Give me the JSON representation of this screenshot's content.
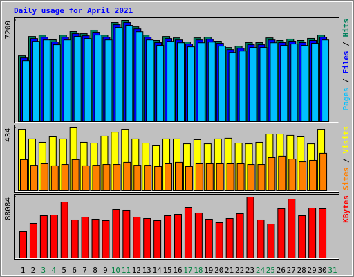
{
  "chart_data": {
    "type": "bar",
    "title": "Daily usage for April 2021",
    "title_color": "#0000ff",
    "categories": [
      "1",
      "2",
      "3",
      "4",
      "5",
      "6",
      "7",
      "8",
      "9",
      "10",
      "11",
      "12",
      "13",
      "14",
      "15",
      "16",
      "17",
      "18",
      "19",
      "20",
      "21",
      "22",
      "23",
      "24",
      "25",
      "26",
      "27",
      "28",
      "29",
      "30",
      "31"
    ],
    "category_colors": [
      "#000000",
      "#000000",
      "#008040",
      "#008040",
      "#000000",
      "#000000",
      "#000000",
      "#000000",
      "#000000",
      "#008040",
      "#008040",
      "#000000",
      "#000000",
      "#000000",
      "#000000",
      "#000000",
      "#008040",
      "#008040",
      "#000000",
      "#000000",
      "#000000",
      "#000000",
      "#000000",
      "#008040",
      "#008040",
      "#000000",
      "#000000",
      "#000000",
      "#000000",
      "#000000",
      "#008040"
    ],
    "legend_separator": " / ",
    "panels": [
      {
        "ylim": [
          0,
          7200
        ],
        "yticks": [
          7200
        ],
        "series": [
          {
            "name": "Pages",
            "color": "#00c0ff",
            "values": [
              4330,
              5710,
              5810,
              5470,
              5810,
              6060,
              5910,
              6160,
              5810,
              6700,
              6850,
              6400,
              5810,
              5420,
              5710,
              5610,
              5320,
              5610,
              5660,
              5370,
              4920,
              5020,
              5270,
              5270,
              5610,
              5420,
              5520,
              5420,
              5570,
              5810,
              null
            ]
          },
          {
            "name": "Files",
            "color": "#0000ff",
            "values": [
              4530,
              5910,
              6010,
              5670,
              6010,
              6260,
              6110,
              6360,
              6010,
              6900,
              7050,
              6600,
              6010,
              5620,
              5910,
              5810,
              5520,
              5810,
              5860,
              5570,
              5120,
              5220,
              5470,
              5470,
              5810,
              5620,
              5720,
              5620,
              5770,
              6010,
              null
            ]
          },
          {
            "name": "Hits",
            "color": "#00805c",
            "values": [
              4680,
              6060,
              6160,
              5820,
              6160,
              6410,
              6260,
              6510,
              6160,
              7050,
              7200,
              6750,
              6160,
              5770,
              6060,
              5960,
              5670,
              5960,
              6010,
              5720,
              5270,
              5370,
              5620,
              5620,
              5960,
              5770,
              5870,
              5770,
              5920,
              6160,
              null
            ]
          }
        ]
      },
      {
        "ylim": [
          0,
          434
        ],
        "yticks": [
          434
        ],
        "series": [
          {
            "name": "Sites",
            "color": "#ff8000",
            "values": [
              215,
              176,
              186,
              172,
              181,
              215,
              172,
              176,
              181,
              181,
              196,
              176,
              176,
              167,
              186,
              196,
              167,
              186,
              186,
              186,
              186,
              186,
              181,
              181,
              229,
              239,
              219,
              200,
              210,
              258,
              null
            ]
          },
          {
            "name": "Visits",
            "color": "#ffff00",
            "values": [
              420,
              358,
              334,
              372,
              358,
              434,
              334,
              329,
              377,
              405,
              420,
              358,
              329,
              310,
              358,
              358,
              324,
              353,
              324,
              358,
              363,
              329,
              324,
              334,
              391,
              391,
              382,
              372,
              324,
              420,
              null
            ]
          }
        ]
      },
      {
        "ylim": [
          0,
          88084
        ],
        "yticks": [
          88084
        ],
        "series": [
          {
            "name": "KBytes",
            "color": "#ff0000",
            "values": [
              38040,
              50050,
              61060,
              62060,
              81080,
              55060,
              59060,
              56060,
              54050,
              70070,
              69070,
              59060,
              57060,
              54050,
              61060,
              63060,
              73070,
              65070,
              56060,
              51050,
              57060,
              64060,
              88084,
              55060,
              49050,
              71070,
              85090,
              61060,
              72070,
              71070,
              null
            ]
          }
        ]
      }
    ]
  }
}
